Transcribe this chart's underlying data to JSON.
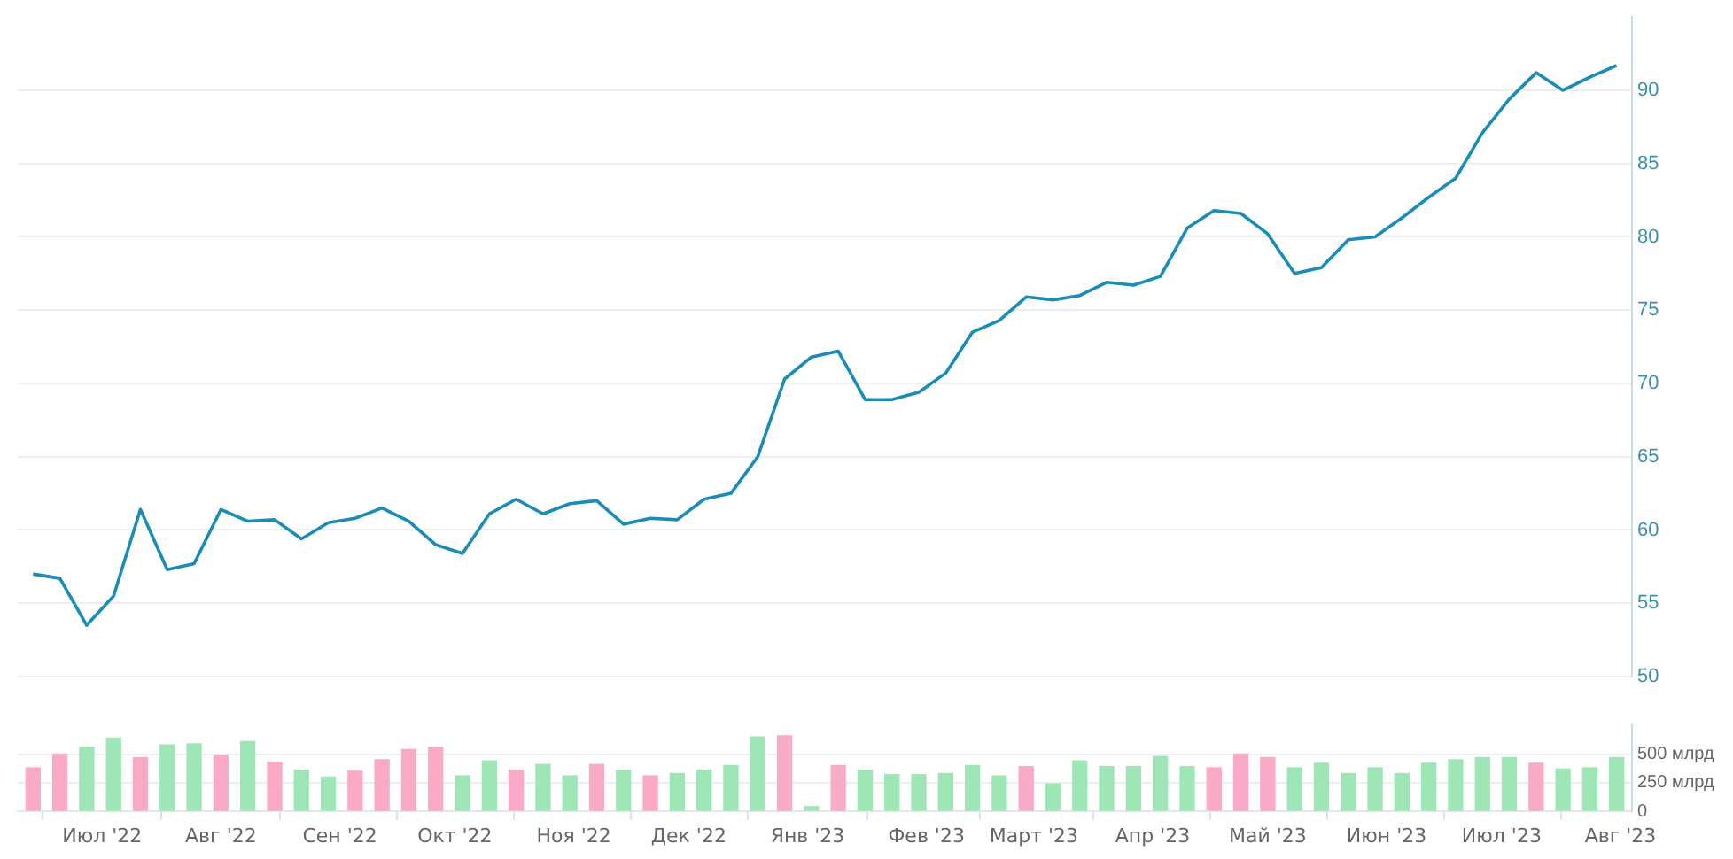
{
  "chart_data": [
    {
      "type": "line",
      "x": [
        "2022-06-13",
        "2022-06-20",
        "2022-06-27",
        "2022-07-04",
        "2022-07-11",
        "2022-07-18",
        "2022-07-25",
        "2022-08-01",
        "2022-08-08",
        "2022-08-15",
        "2022-08-22",
        "2022-08-29",
        "2022-09-05",
        "2022-09-12",
        "2022-09-19",
        "2022-09-26",
        "2022-10-03",
        "2022-10-10",
        "2022-10-17",
        "2022-10-24",
        "2022-10-31",
        "2022-11-07",
        "2022-11-14",
        "2022-11-21",
        "2022-11-28",
        "2022-12-05",
        "2022-12-12",
        "2022-12-19",
        "2022-12-26",
        "2023-01-02",
        "2023-01-09",
        "2023-01-16",
        "2023-01-23",
        "2023-01-30",
        "2023-02-06",
        "2023-02-13",
        "2023-02-20",
        "2023-02-27",
        "2023-03-06",
        "2023-03-13",
        "2023-03-20",
        "2023-03-27",
        "2023-04-03",
        "2023-04-10",
        "2023-04-17",
        "2023-04-24",
        "2023-05-01",
        "2023-05-08",
        "2023-05-15",
        "2023-05-22",
        "2023-05-29",
        "2023-06-05",
        "2023-06-12",
        "2023-06-19",
        "2023-06-26",
        "2023-07-03",
        "2023-07-10",
        "2023-07-17",
        "2023-07-24",
        "2023-07-31"
      ],
      "series": [
        {
          "color": "#1a8cb5",
          "values": [
            57.0,
            56.7,
            53.5,
            55.5,
            61.4,
            57.3,
            57.7,
            61.4,
            60.6,
            60.7,
            59.4,
            60.5,
            60.8,
            61.5,
            60.6,
            59.0,
            58.4,
            61.1,
            62.1,
            61.1,
            61.8,
            62.0,
            60.4,
            60.8,
            60.7,
            62.1,
            62.5,
            65.0,
            70.3,
            71.8,
            72.2,
            68.9,
            68.9,
            69.4,
            70.7,
            73.5,
            74.3,
            75.9,
            75.7,
            76.0,
            76.9,
            76.7,
            77.3,
            80.6,
            81.8,
            81.6,
            80.2,
            77.5,
            77.9,
            79.8,
            80.0,
            81.3,
            82.7,
            84.0,
            87.1,
            89.4,
            91.2,
            90.0,
            90.9,
            91.7
          ]
        }
      ],
      "xlim": [
        "2022-06-09",
        "2023-08-04"
      ],
      "ylim": [
        50,
        95
      ],
      "yticks": [
        50,
        55,
        60,
        65,
        70,
        75,
        80,
        85,
        90
      ],
      "grid": "y",
      "tick_labels": "y"
    },
    {
      "type": "bar",
      "x": [
        "2022-06-13",
        "2022-06-20",
        "2022-06-27",
        "2022-07-04",
        "2022-07-11",
        "2022-07-18",
        "2022-07-25",
        "2022-08-01",
        "2022-08-08",
        "2022-08-15",
        "2022-08-22",
        "2022-08-29",
        "2022-09-05",
        "2022-09-12",
        "2022-09-19",
        "2022-09-26",
        "2022-10-03",
        "2022-10-10",
        "2022-10-17",
        "2022-10-24",
        "2022-10-31",
        "2022-11-07",
        "2022-11-14",
        "2022-11-21",
        "2022-11-28",
        "2022-12-05",
        "2022-12-12",
        "2022-12-19",
        "2022-12-26",
        "2023-01-02",
        "2023-01-09",
        "2023-01-16",
        "2023-01-23",
        "2023-01-30",
        "2023-02-06",
        "2023-02-13",
        "2023-02-20",
        "2023-02-27",
        "2023-03-06",
        "2023-03-13",
        "2023-03-20",
        "2023-03-27",
        "2023-04-03",
        "2023-04-10",
        "2023-04-17",
        "2023-04-24",
        "2023-05-01",
        "2023-05-08",
        "2023-05-15",
        "2023-05-22",
        "2023-05-29",
        "2023-06-05",
        "2023-06-12",
        "2023-06-19",
        "2023-06-26",
        "2023-07-03",
        "2023-07-10",
        "2023-07-17",
        "2023-07-24",
        "2023-07-31"
      ],
      "values": [
        380,
        500,
        560,
        640,
        470,
        580,
        590,
        490,
        610,
        430,
        360,
        300,
        350,
        450,
        540,
        560,
        310,
        440,
        360,
        410,
        310,
        410,
        360,
        310,
        330,
        360,
        400,
        650,
        660,
        40,
        400,
        360,
        320,
        320,
        330,
        400,
        310,
        390,
        240,
        440,
        390,
        390,
        480,
        390,
        380,
        500,
        470,
        380,
        420,
        330,
        380,
        330,
        420,
        450,
        470,
        470,
        420,
        370,
        380,
        470
      ],
      "colors": [
        "#f9aac6",
        "#f9aac6",
        "#9fe6b6",
        "#9fe6b6",
        "#f9aac6",
        "#9fe6b6",
        "#9fe6b6",
        "#f9aac6",
        "#9fe6b6",
        "#f9aac6",
        "#9fe6b6",
        "#9fe6b6",
        "#f9aac6",
        "#f9aac6",
        "#f9aac6",
        "#f9aac6",
        "#9fe6b6",
        "#9fe6b6",
        "#f9aac6",
        "#9fe6b6",
        "#9fe6b6",
        "#f9aac6",
        "#9fe6b6",
        "#f9aac6",
        "#9fe6b6",
        "#9fe6b6",
        "#9fe6b6",
        "#9fe6b6",
        "#f9aac6",
        "#9fe6b6",
        "#f9aac6",
        "#9fe6b6",
        "#9fe6b6",
        "#9fe6b6",
        "#9fe6b6",
        "#9fe6b6",
        "#9fe6b6",
        "#f9aac6",
        "#9fe6b6",
        "#9fe6b6",
        "#9fe6b6",
        "#9fe6b6",
        "#9fe6b6",
        "#9fe6b6",
        "#f9aac6",
        "#f9aac6",
        "#f9aac6",
        "#9fe6b6",
        "#9fe6b6",
        "#9fe6b6",
        "#9fe6b6",
        "#9fe6b6",
        "#9fe6b6",
        "#9fe6b6",
        "#9fe6b6",
        "#9fe6b6",
        "#f9aac6",
        "#9fe6b6",
        "#9fe6b6",
        "#9fe6b6"
      ],
      "xlim": [
        "2022-06-09",
        "2023-08-04"
      ],
      "xticks": [
        {
          "value": "2022-07-01",
          "label": "Июл '22"
        },
        {
          "value": "2022-08-01",
          "label": "Авг '22"
        },
        {
          "value": "2022-09-01",
          "label": "Сен '22"
        },
        {
          "value": "2022-10-01",
          "label": "Окт '22"
        },
        {
          "value": "2022-11-01",
          "label": "Ноя '22"
        },
        {
          "value": "2022-12-01",
          "label": "Дек '22"
        },
        {
          "value": "2023-01-01",
          "label": "Янв '23"
        },
        {
          "value": "2023-02-01",
          "label": "Фев '23"
        },
        {
          "value": "2023-03-01",
          "label": "Март '23"
        },
        {
          "value": "2023-04-01",
          "label": "Апр '23"
        },
        {
          "value": "2023-05-01",
          "label": "Май '23"
        },
        {
          "value": "2023-06-01",
          "label": "Июн '23"
        },
        {
          "value": "2023-07-01",
          "label": "Июл '23"
        },
        {
          "value": "2023-08-01",
          "label": "Авг '23"
        }
      ],
      "ylim": [
        0,
        760
      ],
      "yticks": [
        0,
        {
          "value": 250,
          "label": "250 млрд"
        },
        {
          "value": 500,
          "label": "500 млрд"
        }
      ],
      "grid": "y"
    }
  ]
}
